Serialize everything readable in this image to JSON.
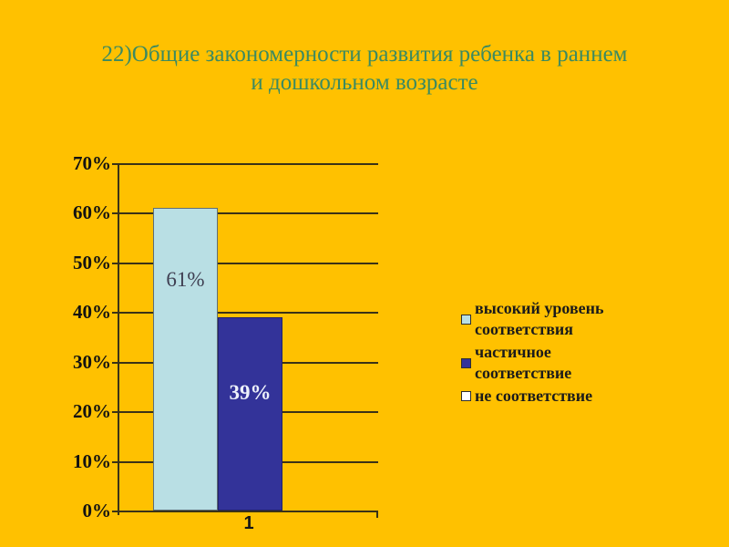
{
  "slide": {
    "background_color": "#ffc100",
    "title_color": "#3b8a61",
    "title": "22)Общие закономерности развития ребенка в раннем и дошкольном возрасте",
    "title_line1": "22)Общие закономерности развития ребенка в раннем",
    "title_line2": "и дошкольном возрасте"
  },
  "chart_data": {
    "type": "bar",
    "categories": [
      "1"
    ],
    "series": [
      {
        "name": "высокий уровень соответствия",
        "values": [
          61
        ],
        "label": "61%",
        "color": "#b9dfe4",
        "border_color": "#5f6d75",
        "label_color": "#3f3f52"
      },
      {
        "name": "частичное соответствие",
        "values": [
          39
        ],
        "label": "39%",
        "color": "#333399",
        "border_color": "#22226b",
        "label_color": "#edf1fb"
      },
      {
        "name": "не соответствие",
        "values": [
          0
        ],
        "label": "",
        "color": "#ffffff",
        "border_color": "#2e2e2e",
        "label_color": "#000000"
      }
    ],
    "title": "",
    "xlabel": "",
    "ylabel": "",
    "ylim": [
      0,
      70
    ],
    "yticks": [
      "70%",
      "60%",
      "50%",
      "40%",
      "30%",
      "20%",
      "10%",
      "0%"
    ],
    "grid": true,
    "legend_position": "right",
    "axis_color": "#3a3217",
    "tick_label_color": "#121212",
    "legend_text_color": "#1b1b1b"
  }
}
